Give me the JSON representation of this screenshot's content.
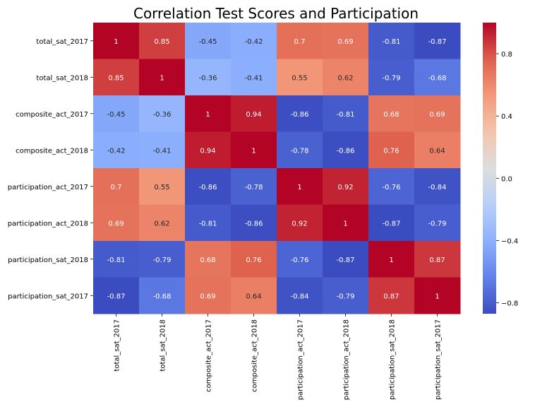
{
  "chart_data": {
    "type": "heatmap",
    "title": "Correlation Test Scores and Participation",
    "row_labels": [
      "total_sat_2017",
      "total_sat_2018",
      "composite_act_2017",
      "composite_act_2018",
      "participation_act_2017",
      "participation_act_2018",
      "participation_sat_2018",
      "participation_sat_2017"
    ],
    "col_labels": [
      "total_sat_2017",
      "total_sat_2018",
      "composite_act_2017",
      "composite_act_2018",
      "participation_act_2017",
      "participation_act_2018",
      "participation_sat_2018",
      "participation_sat_2017"
    ],
    "values": [
      [
        1,
        0.85,
        -0.45,
        -0.42,
        0.7,
        0.69,
        -0.81,
        -0.87
      ],
      [
        0.85,
        1,
        -0.36,
        -0.41,
        0.55,
        0.62,
        -0.79,
        -0.68
      ],
      [
        -0.45,
        -0.36,
        1,
        0.94,
        -0.86,
        -0.81,
        0.68,
        0.69
      ],
      [
        -0.42,
        -0.41,
        0.94,
        1,
        -0.78,
        -0.86,
        0.76,
        0.64
      ],
      [
        0.7,
        0.55,
        -0.86,
        -0.78,
        1,
        0.92,
        -0.76,
        -0.84
      ],
      [
        0.69,
        0.62,
        -0.81,
        -0.86,
        0.92,
        1,
        -0.87,
        -0.79
      ],
      [
        -0.81,
        -0.79,
        0.68,
        0.76,
        -0.76,
        -0.87,
        1,
        0.87
      ],
      [
        -0.87,
        -0.68,
        0.69,
        0.64,
        -0.84,
        -0.79,
        0.87,
        1
      ]
    ],
    "colormap": "coolwarm",
    "colorbar": {
      "min": -0.87,
      "max": 1,
      "ticks": [
        0.8,
        0.4,
        0.0,
        -0.4,
        -0.8
      ],
      "tick_labels": [
        "0.8",
        "0.4",
        "0.0",
        "−0.4",
        "−0.8"
      ]
    },
    "annotated": true,
    "grid": false
  }
}
